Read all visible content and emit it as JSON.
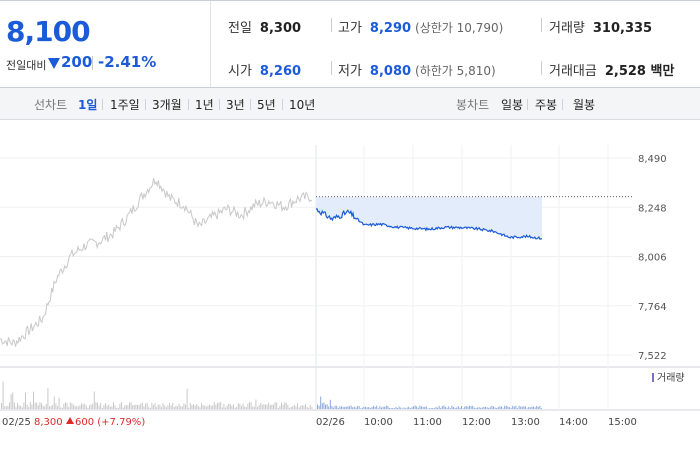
{
  "quote": {
    "price": "8,100",
    "change_label": "전일대비",
    "change": "200",
    "change_pct": "-2.41%"
  },
  "info": {
    "prev_close_label": "전일",
    "prev_close": "8,300",
    "open_label": "시가",
    "open": "8,260",
    "high_label": "고가",
    "high": "8,290",
    "upper_limit": "(상한가 10,790)",
    "low_label": "저가",
    "low": "8,080",
    "lower_limit": "(하한가 5,810)",
    "volume_label": "거래량",
    "volume": "310,335",
    "amount_label": "거래대금",
    "amount": "2,528 백만"
  },
  "toolbar": {
    "line_label": "선차트",
    "line_periods": [
      "1일",
      "1주일",
      "3개월",
      "1년",
      "3년",
      "5년",
      "10년"
    ],
    "active_period": "1일",
    "candle_label": "봉차트",
    "candle_periods": [
      "일봉",
      "주봉",
      "월봉"
    ]
  },
  "colors": {
    "accent": "#1b5ad8",
    "up": "#e0282c",
    "prev_day_line": "#c8c8c8",
    "fill": "#e3ecfb"
  },
  "chart_data": {
    "type": "line",
    "y_ticks": [
      "8,490",
      "8,248",
      "8,006",
      "7,764",
      "7,522"
    ],
    "ylim": [
      7522,
      8490
    ],
    "prev_close_ref": 8300,
    "volume_legend": "거래량",
    "prev_day_label": "02/25",
    "prev_day_close": "8,300",
    "prev_day_change": "600 (+7.79%)",
    "x_ticks": [
      "02/26",
      "10:00",
      "11:00",
      "12:00",
      "13:00",
      "14:00",
      "15:00"
    ],
    "series": [
      {
        "x": [
          "09:00",
          "09:20",
          "09:40",
          "10:00",
          "10:20",
          "10:40",
          "11:00",
          "11:20",
          "11:40",
          "12:00",
          "12:20",
          "12:40",
          "13:00",
          "13:20",
          "13:35"
        ],
        "values": [
          8240,
          8190,
          8225,
          8160,
          8165,
          8150,
          8145,
          8140,
          8150,
          8148,
          8142,
          8130,
          8100,
          8105,
          8095
        ]
      },
      {
        "values": [
          7600,
          7580,
          7640,
          7700,
          7900,
          8010,
          8060,
          8080,
          8120,
          8200,
          8300,
          8390,
          8290,
          8260,
          8150,
          8200,
          8240,
          8210,
          8260,
          8280,
          8250,
          8290,
          8300
        ]
      }
    ]
  }
}
